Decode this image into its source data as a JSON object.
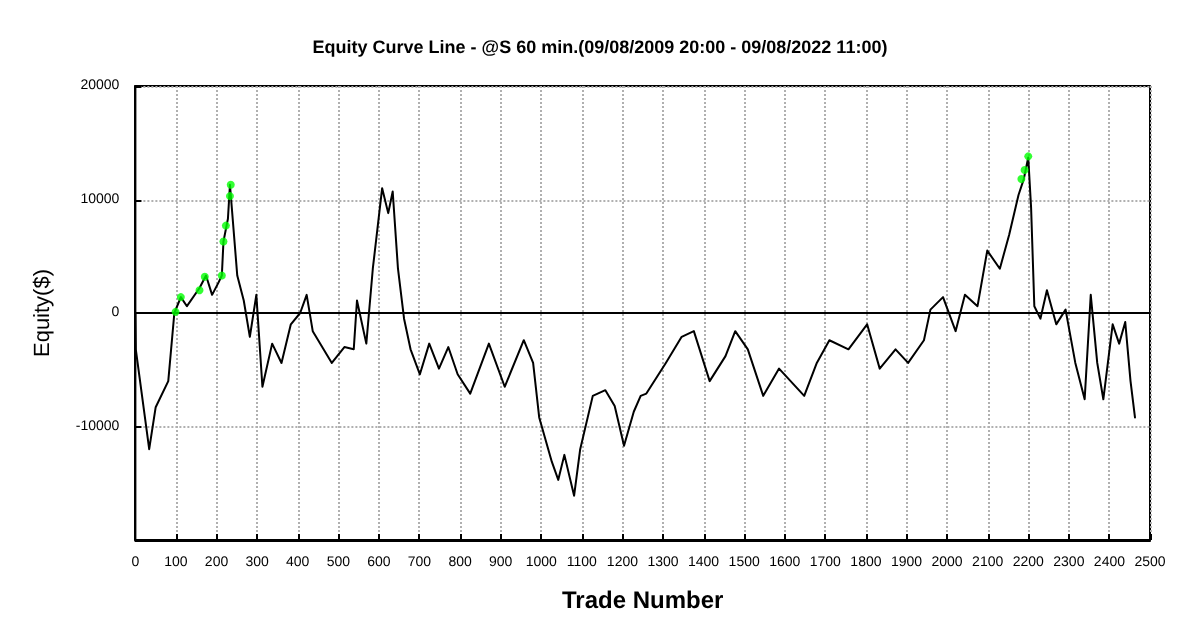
{
  "chart_data": {
    "type": "line",
    "title": "Equity Curve Line - @S 60 min.(09/08/2009 20:00 - 09/08/2022 11:00)",
    "xlabel": "Trade Number",
    "ylabel": "Equity($)",
    "xlim": [
      0,
      2500
    ],
    "xticks": [
      0,
      100,
      200,
      300,
      400,
      500,
      600,
      700,
      800,
      900,
      1000,
      1100,
      1200,
      1300,
      1400,
      1500,
      1600,
      1700,
      1800,
      1900,
      2000,
      2100,
      2200,
      2300,
      2400,
      2500
    ],
    "ylim": [
      -20000,
      20000
    ],
    "yticks": [
      {
        "value": -20000,
        "label": null
      },
      -10000,
      0,
      10000,
      20000
    ],
    "grid": true,
    "marker": "none",
    "line_style": "solid",
    "ref_lines": [
      {
        "axis": "y",
        "value": 0,
        "label": null,
        "color": "#000000",
        "line_style": "solid"
      }
    ],
    "series": [
      {
        "color": "#000000",
        "x": [
          0,
          1,
          34,
          50,
          81,
          96,
          112,
          127,
          158,
          174,
          189,
          205,
          213,
          217,
          228,
          233,
          251,
          267,
          282,
          298,
          313,
          337,
          360,
          383,
          406,
          422,
          437,
          484,
          515,
          538,
          546,
          569,
          585,
          608,
          623,
          634,
          647,
          662,
          678,
          701,
          724,
          748,
          771,
          794,
          825,
          871,
          910,
          957,
          980,
          995,
          1026,
          1042,
          1057,
          1081,
          1096,
          1127,
          1158,
          1181,
          1204,
          1228,
          1245,
          1259,
          1307,
          1346,
          1376,
          1415,
          1454,
          1478,
          1509,
          1547,
          1586,
          1648,
          1679,
          1710,
          1757,
          1803,
          1834,
          1873,
          1904,
          1943,
          1959,
          1990,
          2021,
          2044,
          2075,
          2099,
          2130,
          2153,
          2176,
          2189,
          2200,
          2207,
          2215,
          2230,
          2246,
          2269,
          2292,
          2316,
          2339,
          2354,
          2370,
          2385,
          2408,
          2424,
          2439,
          2452,
          2463
        ],
        "values": [
          0,
          -3200,
          -12000,
          -8300,
          -6000,
          0,
          1400,
          600,
          2200,
          3300,
          1600,
          2700,
          3300,
          6300,
          8300,
          11300,
          3300,
          1100,
          -2100,
          1600,
          -6500,
          -2700,
          -4400,
          -1000,
          0,
          1600,
          -1600,
          -4400,
          -3000,
          -3200,
          1100,
          -2700,
          3900,
          11000,
          8800,
          10700,
          3900,
          -500,
          -3200,
          -5400,
          -2700,
          -4900,
          -3000,
          -5400,
          -7100,
          -2700,
          -6500,
          -2400,
          -4400,
          -9200,
          -13100,
          -14700,
          -12500,
          -16100,
          -12000,
          -7300,
          -6800,
          -8200,
          -11700,
          -8700,
          -7300,
          -7100,
          -4400,
          -2100,
          -1600,
          -6000,
          -3800,
          -1600,
          -3200,
          -7300,
          -4900,
          -7300,
          -4400,
          -2400,
          -3200,
          -1000,
          -4900,
          -3200,
          -4400,
          -2400,
          300,
          1400,
          -1600,
          1600,
          600,
          5500,
          3900,
          6900,
          10400,
          11800,
          13700,
          9300,
          600,
          -500,
          2000,
          -1000,
          300,
          -4400,
          -7600,
          1600,
          -4400,
          -7600,
          -1000,
          -2700,
          -800,
          -6000,
          -9200
        ]
      },
      {
        "type": "scatter",
        "color": "#00ff00",
        "marker": "circle",
        "x": [
          99,
          112,
          158,
          171,
          213,
          217,
          223,
          233,
          235,
          2183,
          2191,
          2200
        ],
        "values": [
          100,
          1400,
          2000,
          3200,
          3300,
          6300,
          7700,
          10300,
          11300,
          11800,
          12600,
          13800
        ]
      }
    ]
  }
}
